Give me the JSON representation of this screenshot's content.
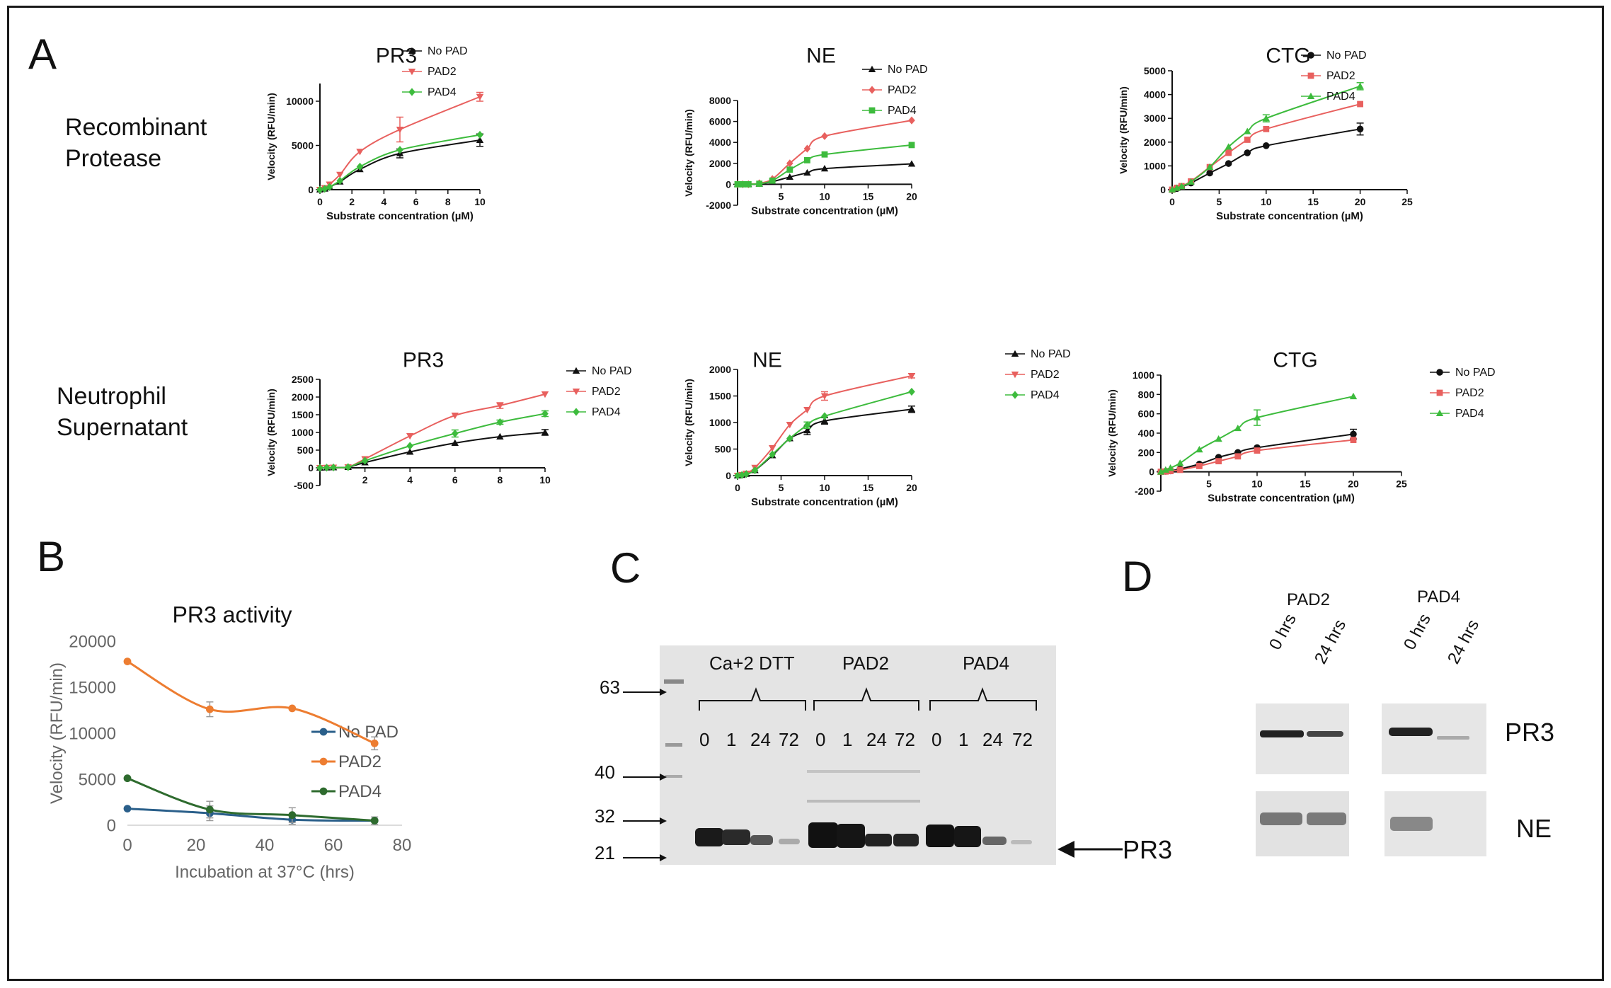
{
  "panels": {
    "A": "A",
    "B": "B",
    "C": "C",
    "D": "D"
  },
  "row_labels": {
    "recombinant_line1": "Recombinant",
    "recombinant_line2": "Protease",
    "neutrophil_line1": "Neutrophil",
    "neutrophil_line2": "Supernatant"
  },
  "colors": {
    "black": "#111111",
    "red": "#e8605e",
    "green": "#3dbb3d",
    "blue": "#2a5f8a",
    "orange": "#ed7d31",
    "darkgreen": "#2e6b2e"
  },
  "chart_data": [
    {
      "id": "a1",
      "type": "line",
      "title": "PR3",
      "xlabel": "Substrate concentration (µM)",
      "ylabel": "Velocity (RFU/min)",
      "xlim": [
        0,
        10
      ],
      "ylim": [
        0,
        12000
      ],
      "xticks": [
        0,
        2,
        4,
        6,
        8,
        10
      ],
      "yticks": [
        0,
        5000,
        10000
      ],
      "series": [
        {
          "name": "No PAD",
          "marker": "triangle",
          "color": "#111111",
          "x": [
            0,
            0.3,
            0.6,
            1.25,
            2.5,
            5,
            10
          ],
          "y": [
            0,
            100,
            300,
            900,
            2300,
            4100,
            5600
          ],
          "err": [
            0,
            0,
            0,
            0,
            0,
            500,
            700
          ]
        },
        {
          "name": "PAD2",
          "marker": "triangle-down",
          "color": "#e8605e",
          "x": [
            0,
            0.3,
            0.6,
            1.25,
            2.5,
            5,
            10
          ],
          "y": [
            0,
            200,
            600,
            1700,
            4300,
            6800,
            10500
          ],
          "err": [
            0,
            0,
            0,
            0,
            0,
            1400,
            500
          ]
        },
        {
          "name": "PAD4",
          "marker": "diamond",
          "color": "#3dbb3d",
          "x": [
            0,
            0.3,
            0.6,
            1.25,
            2.5,
            5,
            10
          ],
          "y": [
            0,
            100,
            300,
            1000,
            2600,
            4500,
            6200
          ],
          "err": [
            0,
            0,
            0,
            0,
            0,
            0,
            0
          ]
        }
      ]
    },
    {
      "id": "a2",
      "type": "line",
      "title": "NE",
      "xlabel": "Substrate concentration (µM)",
      "ylabel": "Velocity (RFU/min)",
      "xlim": [
        0,
        20
      ],
      "ylim": [
        -2000,
        8000
      ],
      "xticks": [
        5,
        10,
        15,
        20
      ],
      "yticks": [
        -2000,
        0,
        2000,
        4000,
        6000,
        8000
      ],
      "series": [
        {
          "name": "No PAD",
          "marker": "triangle",
          "color": "#111111",
          "x": [
            0,
            0.6,
            1.25,
            2.5,
            4,
            6,
            8,
            10,
            20
          ],
          "y": [
            0,
            0,
            0,
            50,
            250,
            700,
            1100,
            1500,
            1950
          ],
          "err": [
            0,
            0,
            0,
            0,
            0,
            0,
            0,
            0,
            0
          ]
        },
        {
          "name": "PAD2",
          "marker": "diamond",
          "color": "#e8605e",
          "x": [
            0,
            0.6,
            1.25,
            2.5,
            4,
            6,
            8,
            10,
            20
          ],
          "y": [
            0,
            0,
            0,
            100,
            500,
            2000,
            3400,
            4600,
            6100
          ],
          "err": [
            0,
            0,
            0,
            0,
            0,
            0,
            0,
            0,
            0
          ]
        },
        {
          "name": "PAD4",
          "marker": "square",
          "color": "#3dbb3d",
          "x": [
            0,
            0.6,
            1.25,
            2.5,
            4,
            6,
            8,
            10,
            20
          ],
          "y": [
            0,
            0,
            0,
            50,
            350,
            1400,
            2300,
            2850,
            3750
          ],
          "err": [
            0,
            0,
            0,
            0,
            0,
            0,
            0,
            0,
            0
          ]
        }
      ]
    },
    {
      "id": "a3",
      "type": "line",
      "title": "CTG",
      "xlabel": "Substrate concentration (µM)",
      "ylabel": "Velocity (RFU/min)",
      "xlim": [
        0,
        25
      ],
      "ylim": [
        0,
        5000
      ],
      "xticks": [
        0,
        5,
        10,
        15,
        20,
        25
      ],
      "yticks": [
        0,
        1000,
        2000,
        3000,
        4000,
        5000
      ],
      "series": [
        {
          "name": "No PAD",
          "marker": "circle",
          "color": "#111111",
          "x": [
            0,
            0.5,
            1,
            2,
            4,
            6,
            8,
            10,
            20
          ],
          "y": [
            0,
            50,
            120,
            280,
            700,
            1100,
            1550,
            1850,
            2550
          ],
          "err": [
            0,
            0,
            0,
            0,
            0,
            0,
            0,
            0,
            250
          ]
        },
        {
          "name": "PAD2",
          "marker": "square",
          "color": "#e8605e",
          "x": [
            0,
            0.5,
            1,
            2,
            4,
            6,
            8,
            10,
            20
          ],
          "y": [
            0,
            80,
            150,
            350,
            950,
            1550,
            2100,
            2550,
            3600
          ],
          "err": [
            0,
            0,
            0,
            0,
            0,
            0,
            0,
            0,
            0
          ]
        },
        {
          "name": "PAD4",
          "marker": "triangle",
          "color": "#3dbb3d",
          "x": [
            0,
            0.5,
            1,
            2,
            4,
            6,
            8,
            10,
            20
          ],
          "y": [
            0,
            70,
            140,
            330,
            950,
            1800,
            2450,
            3000,
            4350
          ],
          "err": [
            0,
            0,
            0,
            0,
            0,
            0,
            0,
            150,
            150
          ]
        }
      ]
    },
    {
      "id": "a4",
      "type": "line",
      "title": "PR3",
      "xlabel": "",
      "ylabel": "Velocity (RFU/min)",
      "xlim": [
        0,
        10
      ],
      "ylim": [
        -500,
        2500
      ],
      "xticks": [
        2,
        4,
        6,
        8,
        10
      ],
      "yticks": [
        -500,
        0,
        500,
        1000,
        1500,
        2000,
        2500
      ],
      "series": [
        {
          "name": "No PAD",
          "marker": "triangle",
          "color": "#111111",
          "x": [
            0,
            0.3,
            0.6,
            1.25,
            2,
            4,
            6,
            8,
            10
          ],
          "y": [
            0,
            5,
            10,
            20,
            150,
            450,
            700,
            880,
            1000
          ],
          "err": [
            0,
            0,
            0,
            0,
            0,
            0,
            0,
            0,
            80
          ]
        },
        {
          "name": "PAD2",
          "marker": "triangle-down",
          "color": "#e8605e",
          "x": [
            0,
            0.3,
            0.6,
            1.25,
            2,
            4,
            6,
            8,
            10
          ],
          "y": [
            0,
            5,
            10,
            20,
            250,
            900,
            1480,
            1760,
            2080
          ],
          "err": [
            0,
            0,
            0,
            0,
            0,
            0,
            0,
            80,
            0
          ]
        },
        {
          "name": "PAD4",
          "marker": "diamond",
          "color": "#3dbb3d",
          "x": [
            0,
            0.3,
            0.6,
            1.25,
            2,
            4,
            6,
            8,
            10
          ],
          "y": [
            0,
            5,
            10,
            20,
            200,
            620,
            970,
            1290,
            1530
          ],
          "err": [
            0,
            0,
            0,
            0,
            0,
            0,
            100,
            60,
            80
          ]
        }
      ]
    },
    {
      "id": "a5",
      "type": "line",
      "title": "NE",
      "xlabel": "Substrate concentration (µM)",
      "ylabel": "Velocity (RFU/min)",
      "xlim": [
        0,
        20
      ],
      "ylim": [
        0,
        2000
      ],
      "xticks": [
        0,
        5,
        10,
        15,
        20
      ],
      "yticks": [
        0,
        500,
        1000,
        1500,
        2000
      ],
      "series": [
        {
          "name": "No PAD",
          "marker": "triangle",
          "color": "#111111",
          "x": [
            0,
            0.5,
            1,
            2,
            4,
            6,
            8,
            10,
            20
          ],
          "y": [
            0,
            10,
            30,
            100,
            380,
            700,
            850,
            1030,
            1250
          ],
          "err": [
            0,
            0,
            0,
            0,
            0,
            0,
            80,
            60,
            60
          ]
        },
        {
          "name": "PAD2",
          "marker": "triangle-down",
          "color": "#e8605e",
          "x": [
            0,
            0.5,
            1,
            2,
            4,
            6,
            8,
            10,
            20
          ],
          "y": [
            0,
            15,
            40,
            150,
            520,
            960,
            1240,
            1500,
            1880
          ],
          "err": [
            0,
            0,
            0,
            0,
            0,
            0,
            0,
            80,
            40
          ]
        },
        {
          "name": "PAD4",
          "marker": "diamond",
          "color": "#3dbb3d",
          "x": [
            0,
            0.5,
            1,
            2,
            4,
            6,
            8,
            10,
            20
          ],
          "y": [
            0,
            10,
            30,
            100,
            400,
            700,
            950,
            1120,
            1580
          ],
          "err": [
            0,
            0,
            0,
            0,
            0,
            0,
            60,
            0,
            0
          ]
        }
      ]
    },
    {
      "id": "a6",
      "type": "line",
      "title": "CTG",
      "xlabel": "Substrate concentration (µM)",
      "ylabel": "Velocity (RFU/min)",
      "xlim": [
        0,
        25
      ],
      "ylim": [
        -200,
        1000
      ],
      "xticks": [
        5,
        10,
        15,
        20,
        25
      ],
      "yticks": [
        -200,
        0,
        200,
        400,
        600,
        800,
        1000
      ],
      "series": [
        {
          "name": "No PAD",
          "marker": "circle",
          "color": "#111111",
          "x": [
            0,
            0.5,
            1,
            2,
            4,
            6,
            8,
            10,
            20
          ],
          "y": [
            0,
            5,
            10,
            30,
            80,
            150,
            200,
            250,
            390
          ],
          "err": [
            0,
            0,
            0,
            0,
            0,
            0,
            0,
            0,
            50
          ]
        },
        {
          "name": "PAD2",
          "marker": "square",
          "color": "#e8605e",
          "x": [
            0,
            0.5,
            1,
            2,
            4,
            6,
            8,
            10,
            20
          ],
          "y": [
            0,
            3,
            8,
            20,
            60,
            110,
            160,
            220,
            330
          ],
          "err": [
            0,
            0,
            0,
            0,
            0,
            0,
            0,
            0,
            0
          ]
        },
        {
          "name": "PAD4",
          "marker": "triangle",
          "color": "#3dbb3d",
          "x": [
            0,
            0.5,
            1,
            2,
            4,
            6,
            8,
            10,
            20
          ],
          "y": [
            0,
            20,
            40,
            90,
            230,
            340,
            450,
            560,
            780
          ],
          "err": [
            0,
            0,
            0,
            0,
            0,
            0,
            0,
            80,
            0
          ]
        }
      ]
    },
    {
      "id": "b",
      "type": "line",
      "title": "PR3 activity",
      "xlabel": "Incubation at 37°C (hrs)",
      "ylabel": "Velocity (RFU/min)",
      "xlim": [
        0,
        80
      ],
      "ylim": [
        0,
        20000
      ],
      "xticks": [
        0,
        20,
        40,
        60,
        80
      ],
      "yticks": [
        0,
        5000,
        10000,
        15000,
        20000
      ],
      "series": [
        {
          "name": "No PAD",
          "marker": "circle",
          "color": "#2a5f8a",
          "x": [
            0,
            24,
            48,
            72
          ],
          "y": [
            1800,
            1300,
            600,
            500
          ],
          "err": [
            0,
            800,
            500,
            400
          ]
        },
        {
          "name": "PAD2",
          "marker": "circle",
          "color": "#ed7d31",
          "x": [
            0,
            24,
            48,
            72
          ],
          "y": [
            17800,
            12600,
            12700,
            8900
          ],
          "err": [
            0,
            800,
            0,
            700
          ]
        },
        {
          "name": "PAD4",
          "marker": "circle",
          "color": "#2e6b2e",
          "x": [
            0,
            24,
            48,
            72
          ],
          "y": [
            5100,
            1700,
            1100,
            500
          ],
          "err": [
            0,
            900,
            800,
            0
          ]
        }
      ]
    }
  ],
  "gel_c": {
    "markers": [
      "63",
      "40",
      "32",
      "21"
    ],
    "groups": [
      "Ca+2 DTT",
      "PAD2",
      "PAD4"
    ],
    "timepoints": [
      "0",
      "1",
      "24",
      "72"
    ],
    "arrow_label": "PR3"
  },
  "blot_d": {
    "groups": [
      "PAD2",
      "PAD4"
    ],
    "lanes": [
      "0 hrs",
      "24 hrs"
    ],
    "rows": [
      "PR3",
      "NE"
    ]
  }
}
